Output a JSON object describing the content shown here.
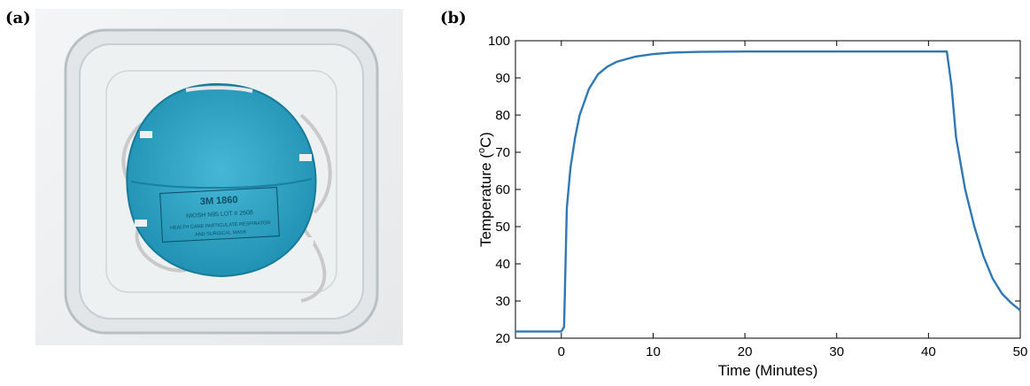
{
  "panels": {
    "a_label": "(a)",
    "b_label": "(b)"
  },
  "photo": {
    "mask_print": [
      "3M 1860",
      "NIOSH  N95  LOT # 2608",
      "HEALTH CARE PARTICULATE RESPIRATOR",
      "AND SURGICAL MASK"
    ],
    "mask_color": "#2ea7c8",
    "container_color": "#d8dde0"
  },
  "chart_data": {
    "type": "line",
    "title": "",
    "xlabel": "Time (Minutes)",
    "ylabel_main": "Temperature (",
    "ylabel_sup": "o",
    "ylabel_end": "C)",
    "xlim": [
      -5,
      50
    ],
    "ylim": [
      20,
      100
    ],
    "xticks": [
      0,
      10,
      20,
      30,
      40,
      50
    ],
    "yticks": [
      20,
      30,
      40,
      50,
      60,
      70,
      80,
      90,
      100
    ],
    "grid": false,
    "line_color": "#2f78b5",
    "series": [
      {
        "x": [
          -5,
          0,
          0.3,
          0.6,
          1,
          1.5,
          2,
          3,
          4,
          5,
          6,
          8,
          10,
          12,
          15,
          20,
          25,
          30,
          35,
          40,
          42,
          42.5,
          43,
          44,
          45,
          46,
          47,
          48,
          49,
          50
        ],
        "y": [
          21.8,
          21.8,
          23,
          55,
          66,
          74,
          80,
          87,
          91,
          93,
          94.3,
          95.7,
          96.4,
          96.8,
          97,
          97.1,
          97.1,
          97.1,
          97.1,
          97.1,
          97.1,
          88,
          74,
          60,
          50,
          42,
          36,
          32,
          29.5,
          27.5
        ]
      }
    ]
  }
}
